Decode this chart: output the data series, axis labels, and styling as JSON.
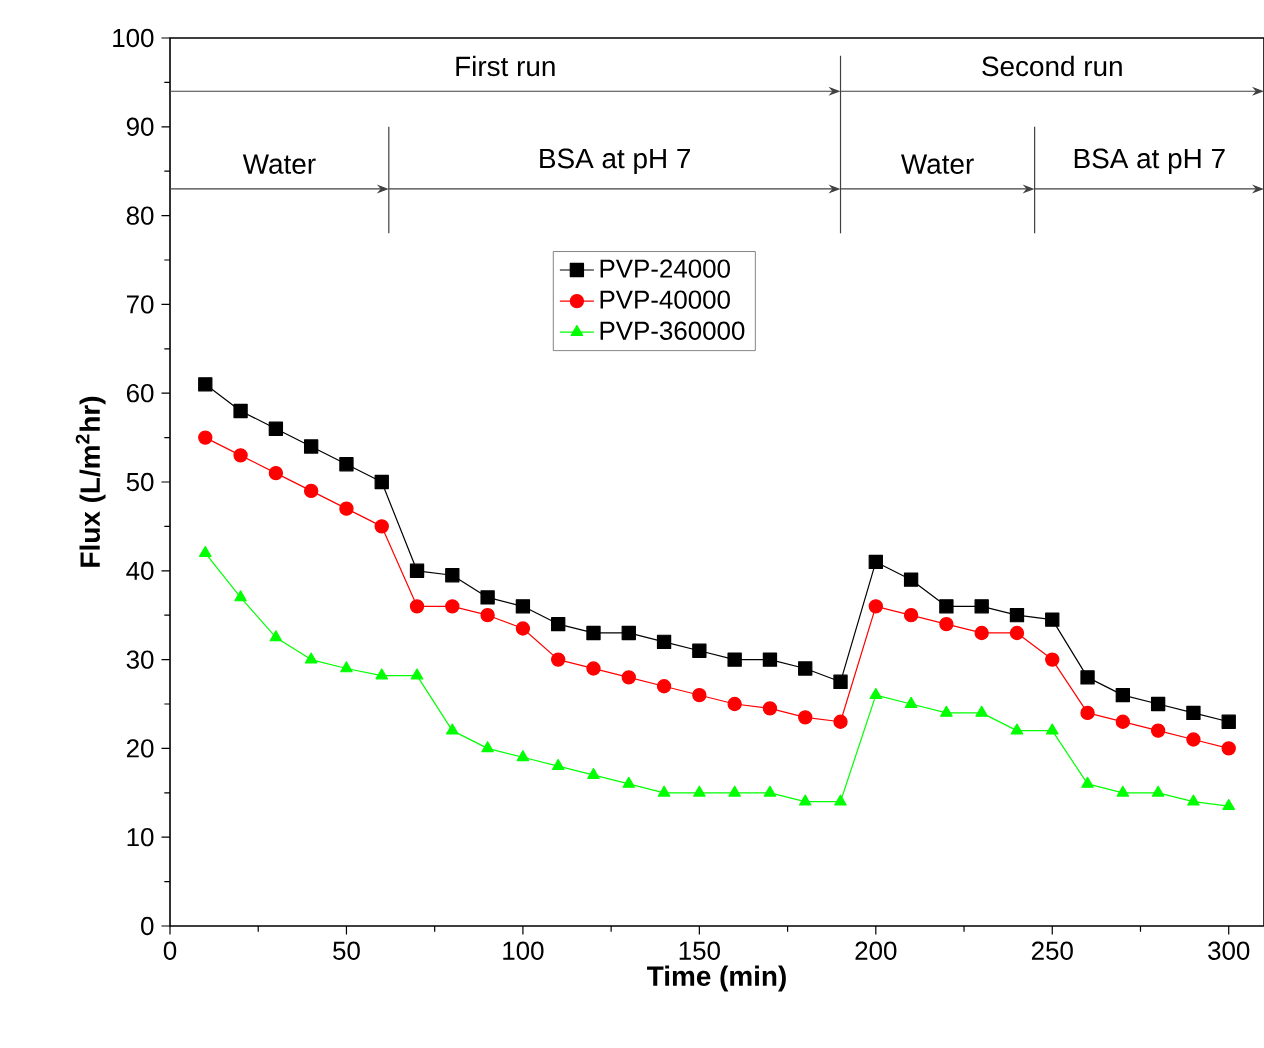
{
  "chart_data": {
    "type": "line",
    "xlabel": "Time (min)",
    "ylabel": "Flux (L/m$^{2}$hr)",
    "x": [
      10,
      20,
      30,
      40,
      50,
      60,
      70,
      80,
      90,
      100,
      110,
      120,
      130,
      140,
      150,
      160,
      170,
      180,
      190,
      200,
      210,
      220,
      230,
      240,
      250,
      260,
      270,
      280,
      290,
      300
    ],
    "series": [
      {
        "name": "PVP-24000",
        "color": "#000000",
        "marker": "square",
        "values": [
          61,
          58,
          56,
          54,
          52,
          50,
          40,
          39.5,
          37,
          36,
          34,
          33,
          33,
          32,
          31,
          30,
          30,
          29,
          27.5,
          41,
          39,
          36,
          36,
          35,
          34.5,
          28,
          26,
          25,
          24,
          23
        ]
      },
      {
        "name": "PVP-40000",
        "color": "#ff0000",
        "marker": "circle",
        "values": [
          55,
          53,
          51,
          49,
          47,
          45,
          36,
          36,
          35,
          33.5,
          30,
          29,
          28,
          27,
          26,
          25,
          24.5,
          23.5,
          23,
          36,
          35,
          34,
          33,
          33,
          30,
          24,
          23,
          22,
          21,
          20
        ]
      },
      {
        "name": "PVP-360000",
        "color": "#00ff00",
        "marker": "triangle",
        "values": [
          42,
          37,
          32.5,
          30,
          29,
          28.2,
          28.2,
          22,
          20,
          19,
          18,
          17,
          16,
          15,
          15,
          15,
          15,
          14,
          14,
          26,
          25,
          24,
          24,
          22,
          22,
          16,
          15,
          15,
          14,
          13.5
        ]
      }
    ],
    "annotations": [
      "First run",
      "Second run",
      "Water",
      "BSA at pH 7",
      "Water",
      "BSA at pH 7"
    ],
    "ref_lines": [
      {
        "axis": "x",
        "value": 62
      },
      {
        "axis": "x",
        "value": 190
      },
      {
        "axis": "x",
        "value": 245
      }
    ],
    "xlim": [
      0,
      310
    ],
    "ylim": [
      0,
      100
    ],
    "xticks": [
      0,
      50,
      100,
      150,
      200,
      250,
      300
    ],
    "yticks": [
      0,
      10,
      20,
      30,
      40,
      50,
      60,
      70,
      80,
      90,
      100
    ],
    "grid": false,
    "legend": "top"
  }
}
